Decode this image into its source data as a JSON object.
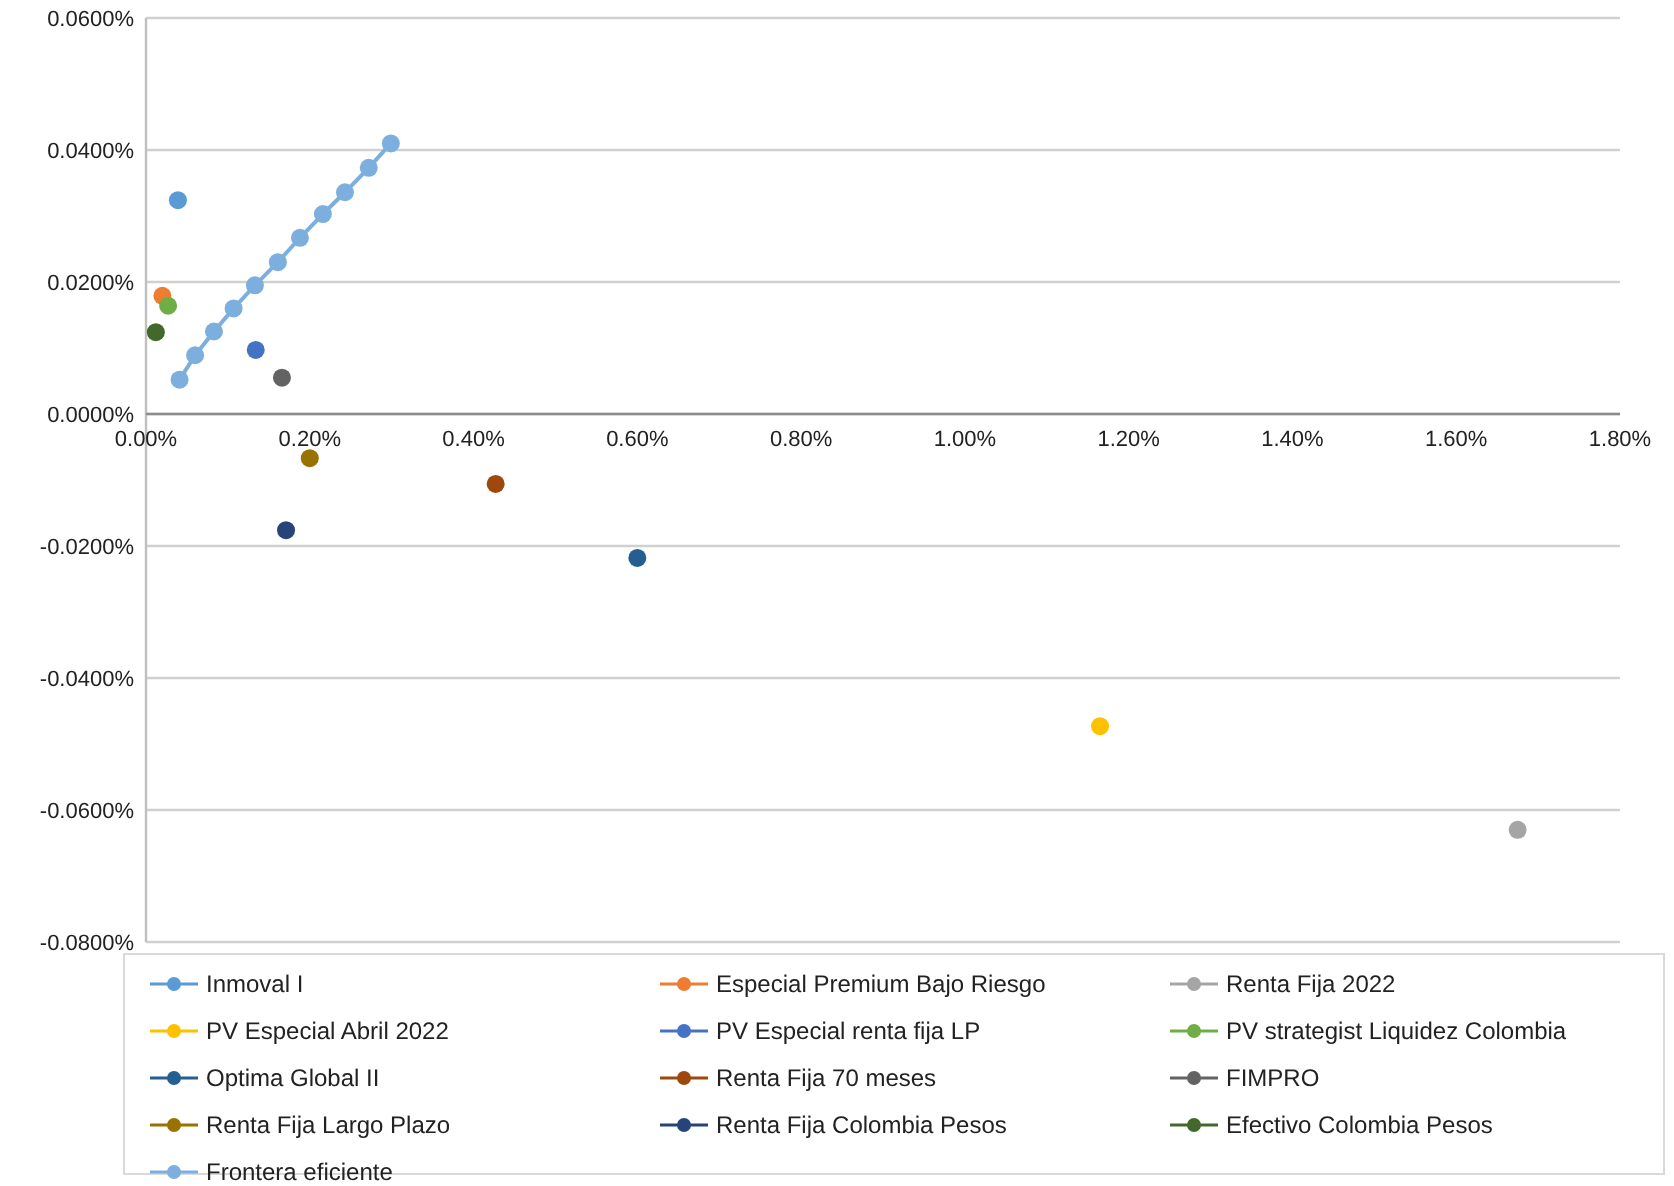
{
  "chart_data": {
    "type": "scatter",
    "marker": "circle",
    "grid": "y",
    "legend": "bottom",
    "xlim": [
      0,
      1.8
    ],
    "ylim": [
      -0.08,
      0.06
    ],
    "xticks": [
      {
        "value": 0,
        "label": "0.00%"
      },
      {
        "value": 0.2,
        "label": "0.20%"
      },
      {
        "value": 0.4,
        "label": "0.40%"
      },
      {
        "value": 0.6,
        "label": "0.60%"
      },
      {
        "value": 0.8,
        "label": "0.80%"
      },
      {
        "value": 1.0,
        "label": "1.00%"
      },
      {
        "value": 1.2,
        "label": "1.20%"
      },
      {
        "value": 1.4,
        "label": "1.40%"
      },
      {
        "value": 1.6,
        "label": "1.60%"
      },
      {
        "value": 1.8,
        "label": "1.80%"
      }
    ],
    "yticks": [
      {
        "value": -0.08,
        "label": "-0.0800%"
      },
      {
        "value": -0.06,
        "label": "-0.0600%"
      },
      {
        "value": -0.04,
        "label": "-0.0400%"
      },
      {
        "value": -0.02,
        "label": "-0.0200%"
      },
      {
        "value": 0,
        "label": "0.0000%"
      },
      {
        "value": 0.02,
        "label": "0.0200%"
      },
      {
        "value": 0.04,
        "label": "0.0400%"
      },
      {
        "value": 0.06,
        "label": "0.0600%"
      }
    ],
    "series": [
      {
        "name": "Inmoval I",
        "color": "#5b9bd5",
        "x": [
          0.039
        ],
        "values": [
          0.0324
        ]
      },
      {
        "name": "Especial Premium Bajo Riesgo",
        "color": "#ed7d31",
        "x": [
          0.02
        ],
        "values": [
          0.0179
        ]
      },
      {
        "name": "Renta Fija 2022",
        "color": "#a5a5a5",
        "x": [
          1.675
        ],
        "values": [
          -0.063
        ]
      },
      {
        "name": "PV Especial Abril 2022",
        "color": "#ffc000",
        "x": [
          1.165
        ],
        "values": [
          -0.0473
        ]
      },
      {
        "name": "PV Especial renta fija LP",
        "color": "#4472c4",
        "x": [
          0.134
        ],
        "values": [
          0.0097
        ]
      },
      {
        "name": "PV strategist Liquidez Colombia",
        "color": "#70ad47",
        "x": [
          0.027
        ],
        "values": [
          0.0164
        ]
      },
      {
        "name": "Optima Global II",
        "color": "#255e91",
        "x": [
          0.6
        ],
        "values": [
          -0.0218
        ]
      },
      {
        "name": "Renta Fija 70 meses",
        "color": "#9e480e",
        "x": [
          0.427
        ],
        "values": [
          -0.0106
        ]
      },
      {
        "name": "FIMPRO",
        "color": "#636363",
        "x": [
          0.166
        ],
        "values": [
          0.0055
        ]
      },
      {
        "name": "Renta Fija Largo Plazo",
        "color": "#997300",
        "x": [
          0.2
        ],
        "values": [
          -0.0067
        ]
      },
      {
        "name": "Renta Fija Colombia Pesos",
        "color": "#264478",
        "x": [
          0.171
        ],
        "values": [
          -0.0176
        ]
      },
      {
        "name": "Efectivo Colombia Pesos",
        "color": "#43682b",
        "x": [
          0.012
        ],
        "values": [
          0.0124
        ]
      },
      {
        "name": "Frontera eficiente",
        "type": "line",
        "color": "#7cafdd",
        "x": [
          0.041,
          0.06,
          0.083,
          0.107,
          0.133,
          0.161,
          0.188,
          0.216,
          0.243,
          0.272,
          0.299
        ],
        "values": [
          0.0052,
          0.0089,
          0.0125,
          0.016,
          0.0195,
          0.023,
          0.0267,
          0.0303,
          0.0336,
          0.0373,
          0.041
        ]
      }
    ]
  }
}
